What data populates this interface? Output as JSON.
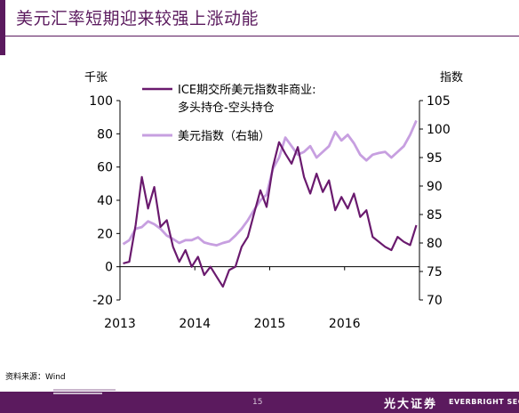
{
  "page": {
    "title": "美元汇率短期迎来较强上涨动能",
    "source": "资料来源：Wind",
    "page_number": "15",
    "brand_cn": "光大证券",
    "brand_en": "EVERBRIGHT SECU"
  },
  "colors": {
    "accent": "#5b1a5e",
    "series_net_position": "#6a1a6e",
    "series_dollar_index": "#c79fe0"
  },
  "chart_data": {
    "type": "line",
    "x_ticks": [
      "2013",
      "2014",
      "2015",
      "2016"
    ],
    "left_axis": {
      "unit": "千张",
      "ylim": [
        -20,
        100
      ],
      "ticks": [
        -20,
        0,
        20,
        40,
        60,
        80,
        100
      ]
    },
    "right_axis": {
      "unit": "指数",
      "ylim": [
        70,
        105
      ],
      "ticks": [
        70,
        75,
        80,
        85,
        90,
        95,
        100,
        105
      ]
    },
    "legend": {
      "placement": "top-center"
    },
    "grid": false,
    "series": [
      {
        "name": "ICE期交所美元指数非商业:\n多头持仓-空头持仓",
        "axis": "left",
        "x": [
          "2013-01",
          "2013-02",
          "2013-03",
          "2013-04",
          "2013-05",
          "2013-06",
          "2013-07",
          "2013-08",
          "2013-09",
          "2013-10",
          "2013-11",
          "2013-12",
          "2014-01",
          "2014-02",
          "2014-03",
          "2014-04",
          "2014-05",
          "2014-06",
          "2014-07",
          "2014-08",
          "2014-09",
          "2014-10",
          "2014-11",
          "2014-12",
          "2015-01",
          "2015-02",
          "2015-03",
          "2015-04",
          "2015-05",
          "2015-06",
          "2015-07",
          "2015-08",
          "2015-09",
          "2015-10",
          "2015-11",
          "2015-12",
          "2016-01",
          "2016-02",
          "2016-03",
          "2016-04",
          "2016-05",
          "2016-06",
          "2016-07",
          "2016-08",
          "2016-09",
          "2016-10",
          "2016-11",
          "2016-12"
        ],
        "values": [
          2,
          3,
          25,
          54,
          35,
          48,
          24,
          28,
          12,
          3,
          10,
          0,
          6,
          -5,
          0,
          -6,
          -12,
          -2,
          0,
          12,
          18,
          32,
          46,
          36,
          60,
          75,
          68,
          62,
          72,
          54,
          44,
          56,
          45,
          52,
          34,
          42,
          35,
          44,
          30,
          34,
          18,
          15,
          12,
          10,
          18,
          15,
          13,
          25
        ]
      },
      {
        "name": "美元指数（右轴）",
        "axis": "right",
        "x": [
          "2013-01",
          "2013-02",
          "2013-03",
          "2013-04",
          "2013-05",
          "2013-06",
          "2013-07",
          "2013-08",
          "2013-09",
          "2013-10",
          "2013-11",
          "2013-12",
          "2014-01",
          "2014-02",
          "2014-03",
          "2014-04",
          "2014-05",
          "2014-06",
          "2014-07",
          "2014-08",
          "2014-09",
          "2014-10",
          "2014-11",
          "2014-12",
          "2015-01",
          "2015-02",
          "2015-03",
          "2015-04",
          "2015-05",
          "2015-06",
          "2015-07",
          "2015-08",
          "2015-09",
          "2015-10",
          "2015-11",
          "2015-12",
          "2016-01",
          "2016-02",
          "2016-03",
          "2016-04",
          "2016-05",
          "2016-06",
          "2016-07",
          "2016-08",
          "2016-09",
          "2016-10",
          "2016-11",
          "2016-12"
        ],
        "values": [
          79.8,
          80.5,
          82.5,
          82.8,
          83.8,
          83.3,
          82.5,
          81.3,
          80.7,
          80.0,
          80.5,
          80.5,
          81.0,
          80.1,
          79.8,
          79.6,
          80.0,
          80.3,
          81.3,
          82.5,
          84.0,
          85.8,
          87.5,
          88.5,
          93.0,
          95.0,
          98.5,
          97.0,
          95.5,
          96.0,
          97.0,
          95.0,
          96.0,
          97.0,
          99.5,
          98.0,
          99.0,
          97.5,
          95.5,
          94.5,
          95.5,
          95.8,
          96.0,
          95.0,
          96.0,
          97.0,
          99.0,
          101.5
        ]
      }
    ]
  }
}
